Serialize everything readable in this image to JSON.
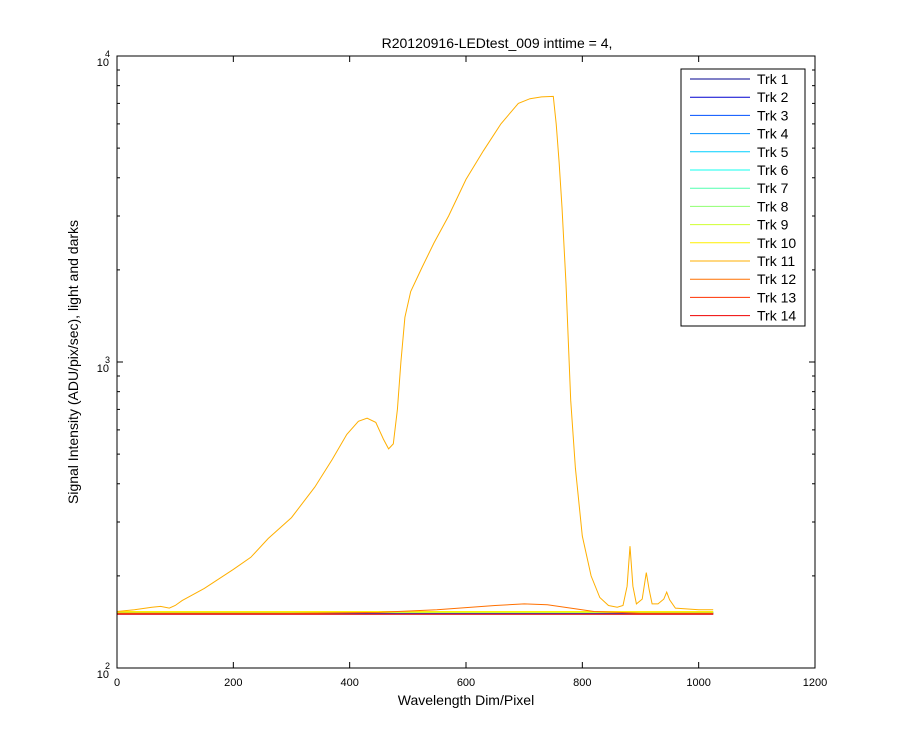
{
  "chart_data": {
    "type": "line",
    "title": "R20120916-LEDtest_009 inttime = 4,",
    "xlabel": "Wavelength Dim/Pixel",
    "ylabel": "Signal Intensity (ADU/pix/sec), light and darks",
    "xlim": [
      0,
      1200
    ],
    "ylim": [
      100,
      10000
    ],
    "yscale": "log",
    "x_ticks": [
      "0",
      "200",
      "400",
      "600",
      "800",
      "1000",
      "1200"
    ],
    "y_ticks": [
      {
        "base": "10",
        "exp": "2"
      },
      {
        "base": "10",
        "exp": "3"
      },
      {
        "base": "10",
        "exp": "4"
      }
    ],
    "grid": false,
    "legend_position": "top-right",
    "series": [
      {
        "name": "Trk 1",
        "color": "#00008F",
        "points": [
          [
            0,
            150
          ],
          [
            1025,
            150
          ]
        ]
      },
      {
        "name": "Trk 2",
        "color": "#0000CF",
        "points": [
          [
            0,
            151
          ],
          [
            1025,
            151
          ]
        ]
      },
      {
        "name": "Trk 3",
        "color": "#0050FF",
        "points": [
          [
            0,
            151
          ],
          [
            1025,
            151
          ]
        ]
      },
      {
        "name": "Trk 4",
        "color": "#008FFF",
        "points": [
          [
            0,
            152
          ],
          [
            1025,
            152
          ]
        ]
      },
      {
        "name": "Trk 5",
        "color": "#00CFFF",
        "points": [
          [
            0,
            152
          ],
          [
            1025,
            152
          ]
        ]
      },
      {
        "name": "Trk 6",
        "color": "#10FFEF",
        "points": [
          [
            0,
            152
          ],
          [
            1025,
            152
          ]
        ]
      },
      {
        "name": "Trk 7",
        "color": "#50FFAF",
        "points": [
          [
            0,
            152
          ],
          [
            1025,
            152
          ]
        ]
      },
      {
        "name": "Trk 8",
        "color": "#8FFF70",
        "points": [
          [
            0,
            152
          ],
          [
            1025,
            152
          ]
        ]
      },
      {
        "name": "Trk 9",
        "color": "#CFFF30",
        "points": [
          [
            0,
            152
          ],
          [
            1025,
            152
          ]
        ]
      },
      {
        "name": "Trk 10",
        "color": "#FFEF00",
        "points": [
          [
            0,
            153
          ],
          [
            1025,
            153
          ]
        ]
      },
      {
        "name": "Trk 11",
        "color": "#FFAF00",
        "points": [
          [
            0,
            153
          ],
          [
            30,
            155
          ],
          [
            60,
            158
          ],
          [
            75,
            159
          ],
          [
            90,
            157
          ],
          [
            100,
            160
          ],
          [
            112,
            166
          ],
          [
            150,
            182
          ],
          [
            200,
            210
          ],
          [
            230,
            230
          ],
          [
            260,
            265
          ],
          [
            300,
            310
          ],
          [
            340,
            390
          ],
          [
            370,
            480
          ],
          [
            395,
            580
          ],
          [
            415,
            640
          ],
          [
            430,
            655
          ],
          [
            445,
            635
          ],
          [
            458,
            560
          ],
          [
            467,
            520
          ],
          [
            475,
            540
          ],
          [
            482,
            700
          ],
          [
            488,
            1000
          ],
          [
            495,
            1400
          ],
          [
            505,
            1700
          ],
          [
            525,
            2050
          ],
          [
            545,
            2450
          ],
          [
            570,
            3000
          ],
          [
            600,
            3950
          ],
          [
            630,
            4900
          ],
          [
            660,
            6000
          ],
          [
            690,
            7000
          ],
          [
            710,
            7250
          ],
          [
            730,
            7350
          ],
          [
            750,
            7380
          ],
          [
            755,
            6000
          ],
          [
            760,
            4500
          ],
          [
            765,
            3200
          ],
          [
            772,
            1800
          ],
          [
            780,
            750
          ],
          [
            788,
            450
          ],
          [
            800,
            270
          ],
          [
            815,
            200
          ],
          [
            830,
            170
          ],
          [
            845,
            160
          ],
          [
            860,
            158
          ],
          [
            870,
            160
          ],
          [
            877,
            185
          ],
          [
            882,
            250
          ],
          [
            887,
            185
          ],
          [
            893,
            162
          ],
          [
            903,
            168
          ],
          [
            910,
            205
          ],
          [
            915,
            180
          ],
          [
            920,
            162
          ],
          [
            930,
            162
          ],
          [
            940,
            168
          ],
          [
            945,
            177
          ],
          [
            950,
            167
          ],
          [
            960,
            157
          ],
          [
            1000,
            155
          ],
          [
            1025,
            155
          ]
        ]
      },
      {
        "name": "Trk 12",
        "color": "#FF7000",
        "points": [
          [
            0,
            151
          ],
          [
            300,
            151
          ],
          [
            450,
            152
          ],
          [
            550,
            155
          ],
          [
            650,
            160
          ],
          [
            700,
            162
          ],
          [
            740,
            161
          ],
          [
            780,
            157
          ],
          [
            820,
            153
          ],
          [
            900,
            151
          ],
          [
            1025,
            151
          ]
        ]
      },
      {
        "name": "Trk 13",
        "color": "#FF3000",
        "points": [
          [
            0,
            150
          ],
          [
            1025,
            150
          ]
        ]
      },
      {
        "name": "Trk 14",
        "color": "#EF0000",
        "points": [
          [
            0,
            150
          ],
          [
            1025,
            150
          ]
        ]
      }
    ]
  }
}
